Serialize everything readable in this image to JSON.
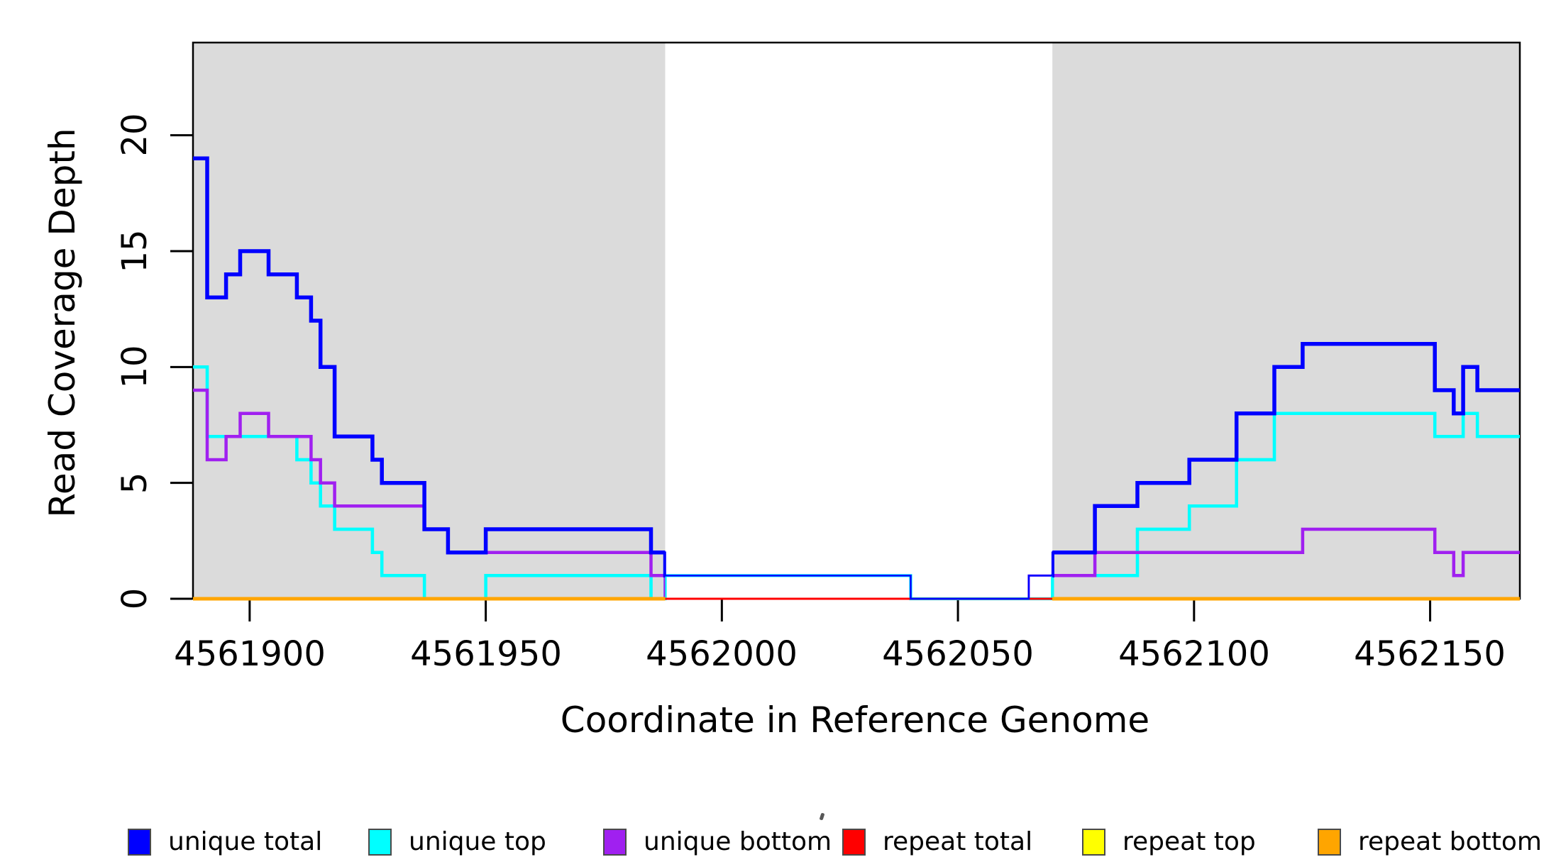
{
  "figure": {
    "background": "#ffffff"
  },
  "axis_titles": {
    "x": "Coordinate in Reference Genome",
    "y": "Read Coverage Depth"
  },
  "axes": {
    "x": {
      "ticks": [
        {
          "value": 4561900,
          "label": "4561900"
        },
        {
          "value": 4561950,
          "label": "4561950"
        },
        {
          "value": 4562000,
          "label": "4562000"
        },
        {
          "value": 4562050,
          "label": "4562050"
        },
        {
          "value": 4562100,
          "label": "4562100"
        },
        {
          "value": 4562150,
          "label": "4562150"
        }
      ]
    },
    "y": {
      "ticks": [
        {
          "value": 0,
          "label": "0"
        },
        {
          "value": 5,
          "label": "5"
        },
        {
          "value": 10,
          "label": "10"
        },
        {
          "value": 15,
          "label": "15"
        },
        {
          "value": 20,
          "label": "20"
        }
      ]
    }
  },
  "legend": {
    "position": "bottom",
    "items": [
      {
        "label": "unique total",
        "color": "#0000FF"
      },
      {
        "label": "unique top",
        "color": "#00FFFF"
      },
      {
        "label": "unique bottom",
        "color": "#A020F0"
      },
      {
        "label": "repeat total",
        "color": "#FF0000"
      },
      {
        "label": "repeat top",
        "color": "#FFFF00"
      },
      {
        "label": "repeat bottom",
        "color": "#FFA500"
      }
    ]
  },
  "chart_data": {
    "type": "line",
    "step": true,
    "title": "",
    "xlabel": "Coordinate in Reference Genome",
    "ylabel": "Read Coverage Depth",
    "xlim": [
      4561888,
      4562169
    ],
    "ylim": [
      0,
      24
    ],
    "grid": false,
    "legend_position": "bottom",
    "shade_color": "#DBDBDB",
    "shaded_regions": [
      {
        "x0": 4561888,
        "x1": 4561988
      },
      {
        "x0": 4562070,
        "x1": 4562169
      }
    ],
    "series": [
      {
        "name": "unique total",
        "color": "#0000FF",
        "points": [
          [
            4561888,
            19
          ],
          [
            4561891,
            13
          ],
          [
            4561895,
            14
          ],
          [
            4561898,
            15
          ],
          [
            4561904,
            14
          ],
          [
            4561910,
            13
          ],
          [
            4561913,
            12
          ],
          [
            4561915,
            10
          ],
          [
            4561918,
            7
          ],
          [
            4561926,
            6
          ],
          [
            4561928,
            5
          ],
          [
            4561937,
            3
          ],
          [
            4561942,
            2
          ],
          [
            4561950,
            3
          ],
          [
            4561985,
            2
          ],
          [
            4561988,
            1
          ],
          [
            4562040,
            0
          ],
          [
            4562065,
            1
          ],
          [
            4562070,
            2
          ],
          [
            4562079,
            4
          ],
          [
            4562088,
            5
          ],
          [
            4562099,
            6
          ],
          [
            4562109,
            8
          ],
          [
            4562117,
            10
          ],
          [
            4562123,
            11
          ],
          [
            4562151,
            9
          ],
          [
            4562155,
            8
          ],
          [
            4562157,
            10
          ],
          [
            4562160,
            9
          ],
          [
            4562169,
            9
          ]
        ]
      },
      {
        "name": "unique top",
        "color": "#00FFFF",
        "points": [
          [
            4561888,
            10
          ],
          [
            4561891,
            7
          ],
          [
            4561910,
            6
          ],
          [
            4561913,
            5
          ],
          [
            4561915,
            4
          ],
          [
            4561918,
            3
          ],
          [
            4561926,
            2
          ],
          [
            4561928,
            1
          ],
          [
            4561937,
            0
          ],
          [
            4561950,
            1
          ],
          [
            4561985,
            0
          ],
          [
            4561988,
            1
          ],
          [
            4562040,
            0
          ],
          [
            4562070,
            1
          ],
          [
            4562088,
            3
          ],
          [
            4562099,
            4
          ],
          [
            4562109,
            6
          ],
          [
            4562117,
            8
          ],
          [
            4562151,
            7
          ],
          [
            4562157,
            8
          ],
          [
            4562160,
            7
          ],
          [
            4562169,
            7
          ]
        ]
      },
      {
        "name": "unique bottom",
        "color": "#A020F0",
        "points": [
          [
            4561888,
            9
          ],
          [
            4561891,
            6
          ],
          [
            4561895,
            7
          ],
          [
            4561898,
            8
          ],
          [
            4561904,
            7
          ],
          [
            4561913,
            6
          ],
          [
            4561915,
            5
          ],
          [
            4561918,
            4
          ],
          [
            4561937,
            3
          ],
          [
            4561942,
            2
          ],
          [
            4561985,
            1
          ],
          [
            4561988,
            0
          ],
          [
            4562065,
            1
          ],
          [
            4562079,
            2
          ],
          [
            4562123,
            3
          ],
          [
            4562151,
            2
          ],
          [
            4562155,
            1
          ],
          [
            4562157,
            2
          ],
          [
            4562169,
            2
          ]
        ]
      },
      {
        "name": "repeat total",
        "color": "#FF0000",
        "points": [
          [
            4561888,
            0
          ],
          [
            4562169,
            0
          ]
        ]
      },
      {
        "name": "repeat top",
        "color": "#FFFF00",
        "points": [
          [
            4561888,
            0
          ],
          [
            4562169,
            0
          ]
        ]
      },
      {
        "name": "repeat bottom",
        "color": "#FFA500",
        "points": [
          [
            4561888,
            0
          ],
          [
            4562169,
            0
          ]
        ]
      }
    ]
  }
}
